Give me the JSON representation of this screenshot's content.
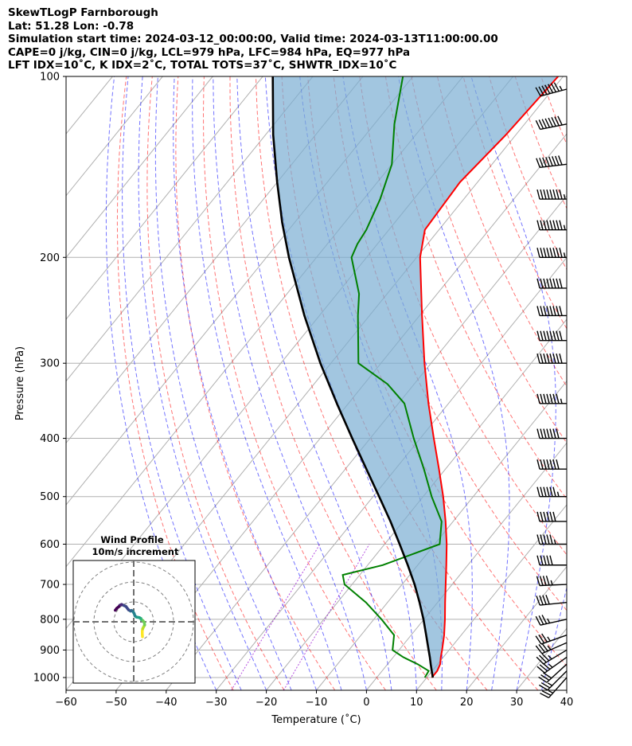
{
  "header": {
    "line1": "SkewTLogP Farnborough",
    "line2": "Lat: 51.28   Lon: -0.78",
    "line3": "Simulation start time: 2024-03-12_00:00:00, Valid time: 2024-03-13T11:00:00.00",
    "line4": "CAPE=0 j/kg, CIN=0 j/kg, LCL=979 hPa, LFC=984 hPa, EQ=977 hPa",
    "line5": "LFT IDX=10˚C, K IDX=2˚C, TOTAL TOTS=37˚C, SHWTR_IDX=10˚C"
  },
  "chart_data": {
    "type": "skewt",
    "xlabel": "Temperature (˚C)",
    "ylabel": "Pressure (hPa)",
    "xlim": [
      -60,
      40
    ],
    "ylim": [
      1050,
      100
    ],
    "y_scale": "log",
    "grid": true,
    "x_ticks": [
      -60,
      -50,
      -40,
      -30,
      -20,
      -10,
      0,
      10,
      20,
      30,
      40
    ],
    "x_tick_labels": [
      "−60",
      "−50",
      "−40",
      "−30",
      "−20",
      "−10",
      "0",
      "10",
      "20",
      "30",
      "40"
    ],
    "y_ticks": [
      1000,
      900,
      800,
      700,
      600,
      500,
      400,
      300,
      200,
      100
    ],
    "y_tick_labels": [
      "1000",
      "900",
      "800",
      "700",
      "600",
      "500",
      "400",
      "300",
      "200",
      "100"
    ],
    "series": [
      {
        "role": "temperature",
        "color": "#ff0000",
        "p": [
          1000,
          975,
          950,
          925,
          900,
          850,
          800,
          750,
          700,
          650,
          600,
          550,
          500,
          450,
          400,
          350,
          300,
          250,
          200,
          180,
          150,
          125,
          100
        ],
        "t": [
          11,
          11,
          10.5,
          9.5,
          8.6,
          6.6,
          4.2,
          1.5,
          -1.3,
          -4.3,
          -7.6,
          -11.5,
          -16,
          -21.3,
          -27.3,
          -34,
          -41.3,
          -49.5,
          -59.3,
          -62.8,
          -63.5,
          -62,
          -61
        ]
      },
      {
        "role": "dewpoint",
        "color": "#008000",
        "p": [
          1000,
          975,
          950,
          925,
          900,
          850,
          800,
          750,
          700,
          675,
          650,
          600,
          550,
          500,
          450,
          400,
          350,
          325,
          300,
          250,
          230,
          200,
          190,
          180,
          160,
          140,
          120,
          100
        ],
        "t": [
          9.6,
          9.3,
          6,
          2,
          -1.3,
          -3.4,
          -8.5,
          -14.3,
          -21.5,
          -23.4,
          -17,
          -9,
          -12.3,
          -18.3,
          -24.3,
          -31.3,
          -38.8,
          -45.3,
          -54.5,
          -62.3,
          -65.6,
          -73,
          -74,
          -74.5,
          -76.7,
          -80,
          -86,
          -92
        ]
      },
      {
        "role": "parcel",
        "color": "#000000",
        "p": [
          1000,
          975,
          950,
          925,
          900,
          850,
          800,
          750,
          700,
          650,
          600,
          550,
          500,
          450,
          400,
          350,
          300,
          250,
          200,
          175,
          150,
          125,
          100
        ],
        "t": [
          11.2,
          9.9,
          8.6,
          7.3,
          5.9,
          3,
          -0.1,
          -3.6,
          -7.5,
          -12,
          -17,
          -22.5,
          -28.8,
          -35.8,
          -43.6,
          -52.3,
          -62.1,
          -73,
          -85.5,
          -92.5,
          -100,
          -108.5,
          -118
        ]
      }
    ],
    "wind_barbs": {
      "p": [
        1000,
        975,
        950,
        925,
        900,
        875,
        850,
        800,
        750,
        700,
        650,
        600,
        550,
        500,
        450,
        400,
        350,
        300,
        275,
        250,
        225,
        200,
        180,
        160,
        140,
        120,
        105
      ],
      "u": [
        -8,
        -10,
        -12,
        -14,
        -15,
        -16,
        -17,
        -18,
        -20,
        -22,
        -25,
        -28,
        -30,
        -33,
        -35,
        -37,
        -38,
        -40,
        -41,
        -42,
        -42,
        -43,
        -43,
        -43,
        -42,
        -40,
        -38
      ],
      "v": [
        -9,
        -10,
        -11,
        -10,
        -9,
        -7,
        -6,
        -4,
        -2,
        -1,
        0,
        0,
        0,
        0,
        0,
        0,
        0,
        0,
        0,
        0,
        0,
        0,
        0,
        0,
        -5,
        -8,
        -10
      ]
    },
    "hodograph": {
      "title_line1": "Wind Profile",
      "title_line2": "10m/s increment",
      "ring_step": 10,
      "ring_count": 3,
      "colormap": "viridis",
      "u": [
        4.4,
        4.3,
        4.3,
        4.5,
        5,
        5.5,
        5.3,
        4.6,
        3.7,
        3.6,
        2.8,
        1.3,
        0.6,
        0.2,
        -0.5,
        -1.1,
        -1.6,
        -2.6,
        -3.9,
        -5.2,
        -6.1,
        -7,
        -7.5,
        -8.5,
        -9.3
      ],
      "v": [
        -7.5,
        -6,
        -4.6,
        -3.5,
        -2.5,
        -1.6,
        -0.3,
        0.6,
        1.2,
        1.7,
        2.1,
        2.4,
        3,
        4.2,
        5.3,
        5.7,
        5.4,
        6,
        7.7,
        8.3,
        8.7,
        8.3,
        7.6,
        6.8,
        5.8
      ]
    }
  }
}
